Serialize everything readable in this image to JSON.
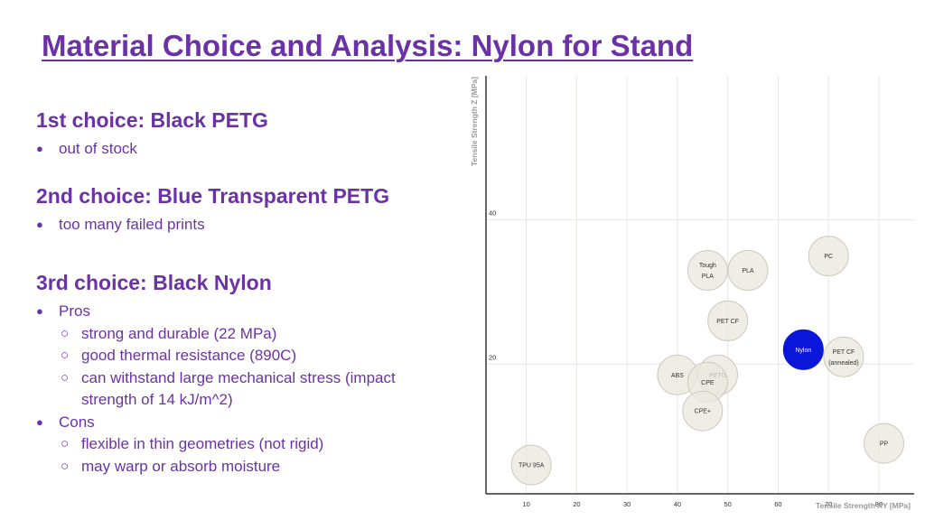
{
  "slide": {
    "title": "Material Choice and Analysis: Nylon for Stand",
    "choices": [
      {
        "heading": "1st choice: Black PETG",
        "bullets": [
          "out of stock"
        ]
      },
      {
        "heading": "2nd choice: Blue Transparent PETG",
        "bullets": [
          "too many failed prints"
        ]
      },
      {
        "heading": "3rd choice: Black Nylon",
        "pros_label": "Pros",
        "pros": [
          "strong and durable (22 MPa)",
          "good thermal resistance (890C)",
          "can withstand large mechanical stress (impact strength of 14 kJ/m^2)"
        ],
        "cons_label": "Cons",
        "cons": [
          "flexible in thin geometries (not rigid)",
          "may warp or absorb moisture"
        ]
      }
    ]
  },
  "colors": {
    "title": "#6b32a8",
    "bubble_fill": "#ebe7df",
    "bubble_stroke": "#cfcac0",
    "highlight": "#0a16d9",
    "axis": "#333333",
    "grid": "#e8e6e1"
  },
  "chart_data": {
    "type": "scatter",
    "title": "",
    "xlabel": "Tensile Strength XY [MPa]",
    "ylabel": "Tensile Strength Z [MPa]",
    "xlim": [
      2,
      87
    ],
    "ylim": [
      2,
      60
    ],
    "xticks": [
      10,
      20,
      30,
      40,
      50,
      60,
      70,
      80
    ],
    "yticks": [
      20,
      40
    ],
    "grid": true,
    "points": [
      {
        "label": "PC",
        "x": 70,
        "y": 35,
        "highlight": false
      },
      {
        "label": "Tough PLA",
        "x": 46,
        "y": 33,
        "highlight": false
      },
      {
        "label": "PLA",
        "x": 54,
        "y": 33,
        "highlight": false
      },
      {
        "label": "PET CF",
        "x": 50,
        "y": 26,
        "highlight": false
      },
      {
        "label": "Nylon",
        "x": 65,
        "y": 22,
        "highlight": true
      },
      {
        "label": "PET CF (annealed)",
        "x": 73,
        "y": 21,
        "highlight": false
      },
      {
        "label": "ABS",
        "x": 40,
        "y": 18.5,
        "highlight": false
      },
      {
        "label": "PETG",
        "x": 48,
        "y": 18.5,
        "highlight": false
      },
      {
        "label": "CPE",
        "x": 46,
        "y": 17.5,
        "highlight": false
      },
      {
        "label": "CPE+",
        "x": 45,
        "y": 13.5,
        "highlight": false
      },
      {
        "label": "PP",
        "x": 81,
        "y": 9,
        "highlight": false
      },
      {
        "label": "TPU 95A",
        "x": 11,
        "y": 6,
        "highlight": false
      }
    ]
  }
}
